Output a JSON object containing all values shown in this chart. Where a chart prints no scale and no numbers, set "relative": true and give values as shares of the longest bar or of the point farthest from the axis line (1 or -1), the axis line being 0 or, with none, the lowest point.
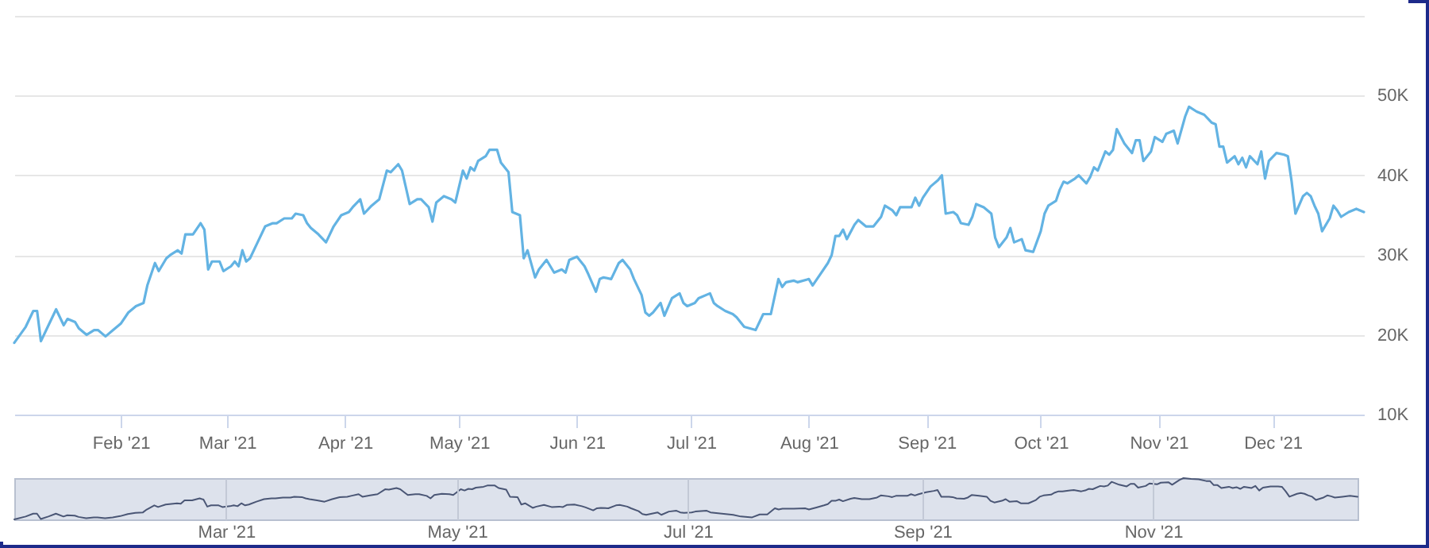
{
  "chart_data": [
    {
      "type": "line",
      "x": [
        "2021-01-04",
        "2021-01-07",
        "2021-01-09",
        "2021-01-10",
        "2021-01-11",
        "2021-01-13",
        "2021-01-15",
        "2021-01-17",
        "2021-01-18",
        "2021-01-20",
        "2021-01-21",
        "2021-01-23",
        "2021-01-25",
        "2021-01-26",
        "2021-01-28",
        "2021-01-30",
        "2021-02-01",
        "2021-02-03",
        "2021-02-05",
        "2021-02-07",
        "2021-02-08",
        "2021-02-10",
        "2021-02-11",
        "2021-02-13",
        "2021-02-14",
        "2021-02-16",
        "2021-02-17",
        "2021-02-18",
        "2021-02-20",
        "2021-02-22",
        "2021-02-23",
        "2021-02-24",
        "2021-02-25",
        "2021-02-27",
        "2021-02-28",
        "2021-03-02",
        "2021-03-03",
        "2021-03-04",
        "2021-03-05",
        "2021-03-06",
        "2021-03-07",
        "2021-03-09",
        "2021-03-11",
        "2021-03-13",
        "2021-03-14",
        "2021-03-16",
        "2021-03-18",
        "2021-03-19",
        "2021-03-21",
        "2021-03-22",
        "2021-03-23",
        "2021-03-25",
        "2021-03-27",
        "2021-03-29",
        "2021-03-31",
        "2021-04-02",
        "2021-04-03",
        "2021-04-05",
        "2021-04-06",
        "2021-04-08",
        "2021-04-10",
        "2021-04-12",
        "2021-04-13",
        "2021-04-15",
        "2021-04-16",
        "2021-04-18",
        "2021-04-20",
        "2021-04-21",
        "2021-04-23",
        "2021-04-24",
        "2021-04-25",
        "2021-04-27",
        "2021-04-29",
        "2021-04-30",
        "2021-05-02",
        "2021-05-03",
        "2021-05-04",
        "2021-05-05",
        "2021-05-06",
        "2021-05-08",
        "2021-05-09",
        "2021-05-11",
        "2021-05-12",
        "2021-05-14",
        "2021-05-15",
        "2021-05-17",
        "2021-05-18",
        "2021-05-19",
        "2021-05-21",
        "2021-05-22",
        "2021-05-24",
        "2021-05-26",
        "2021-05-28",
        "2021-05-29",
        "2021-05-30",
        "2021-06-01",
        "2021-06-03",
        "2021-06-04",
        "2021-06-06",
        "2021-06-07",
        "2021-06-08",
        "2021-06-10",
        "2021-06-12",
        "2021-06-13",
        "2021-06-15",
        "2021-06-16",
        "2021-06-18",
        "2021-06-19",
        "2021-06-20",
        "2021-06-21",
        "2021-06-23",
        "2021-06-24",
        "2021-06-26",
        "2021-06-28",
        "2021-06-29",
        "2021-06-30",
        "2021-07-02",
        "2021-07-03",
        "2021-07-06",
        "2021-07-07",
        "2021-07-08",
        "2021-07-10",
        "2021-07-12",
        "2021-07-13",
        "2021-07-15",
        "2021-07-18",
        "2021-07-20",
        "2021-07-22",
        "2021-07-24",
        "2021-07-25",
        "2021-07-26",
        "2021-07-28",
        "2021-07-29",
        "2021-08-01",
        "2021-08-02",
        "2021-08-04",
        "2021-08-06",
        "2021-08-07",
        "2021-08-08",
        "2021-08-09",
        "2021-08-10",
        "2021-08-11",
        "2021-08-13",
        "2021-08-14",
        "2021-08-16",
        "2021-08-18",
        "2021-08-20",
        "2021-08-21",
        "2021-08-23",
        "2021-08-24",
        "2021-08-25",
        "2021-08-28",
        "2021-08-29",
        "2021-08-30",
        "2021-08-31",
        "2021-09-02",
        "2021-09-04",
        "2021-09-05",
        "2021-09-06",
        "2021-09-08",
        "2021-09-09",
        "2021-09-10",
        "2021-09-12",
        "2021-09-13",
        "2021-09-14",
        "2021-09-16",
        "2021-09-18",
        "2021-09-19",
        "2021-09-20",
        "2021-09-22",
        "2021-09-23",
        "2021-09-24",
        "2021-09-26",
        "2021-09-27",
        "2021-09-29",
        "2021-10-01",
        "2021-10-02",
        "2021-10-03",
        "2021-10-05",
        "2021-10-06",
        "2021-10-07",
        "2021-10-08",
        "2021-10-10",
        "2021-10-11",
        "2021-10-13",
        "2021-10-14",
        "2021-10-15",
        "2021-10-16",
        "2021-10-18",
        "2021-10-19",
        "2021-10-20",
        "2021-10-21",
        "2021-10-23",
        "2021-10-25",
        "2021-10-26",
        "2021-10-27",
        "2021-10-28",
        "2021-10-30",
        "2021-10-31",
        "2021-11-02",
        "2021-11-03",
        "2021-11-05",
        "2021-11-06",
        "2021-11-08",
        "2021-11-09",
        "2021-11-11",
        "2021-11-13",
        "2021-11-15",
        "2021-11-16",
        "2021-11-17",
        "2021-11-18",
        "2021-11-19",
        "2021-11-21",
        "2021-11-22",
        "2021-11-23",
        "2021-11-24",
        "2021-11-25",
        "2021-11-27",
        "2021-11-28",
        "2021-11-29",
        "2021-11-30",
        "2021-12-02",
        "2021-12-04",
        "2021-12-05",
        "2021-12-06",
        "2021-12-07",
        "2021-12-09",
        "2021-12-10",
        "2021-12-11",
        "2021-12-12",
        "2021-12-13",
        "2021-12-14",
        "2021-12-16",
        "2021-12-17",
        "2021-12-18",
        "2021-12-19",
        "2021-12-21",
        "2021-12-23",
        "2021-12-25"
      ],
      "series": [
        {
          "color": "#63b3e3",
          "values": [
            19000,
            21000,
            23000,
            23000,
            19200,
            21200,
            23200,
            21200,
            22000,
            21600,
            20800,
            20000,
            20600,
            20600,
            19800,
            20600,
            21400,
            22800,
            23600,
            24000,
            26200,
            29000,
            28000,
            29600,
            30000,
            30600,
            30200,
            32600,
            32600,
            34000,
            33200,
            28200,
            29200,
            29200,
            28000,
            28600,
            29200,
            28600,
            30600,
            29200,
            29600,
            31600,
            33600,
            34000,
            34000,
            34600,
            34600,
            35200,
            35000,
            34000,
            33400,
            32600,
            31600,
            33600,
            35000,
            35400,
            36000,
            37000,
            35200,
            36200,
            37000,
            40600,
            40400,
            41400,
            40600,
            36400,
            37000,
            37000,
            36000,
            34200,
            36600,
            37400,
            37000,
            36600,
            40600,
            39600,
            41000,
            40600,
            41800,
            42400,
            43200,
            43200,
            41600,
            40400,
            35400,
            35000,
            29600,
            30600,
            27200,
            28200,
            29400,
            27800,
            28200,
            27800,
            29400,
            29800,
            28600,
            27600,
            25400,
            27000,
            27200,
            27000,
            29000,
            29400,
            28200,
            27000,
            25000,
            22800,
            22400,
            22800,
            24000,
            22400,
            24600,
            25200,
            24000,
            23600,
            24000,
            24600,
            25200,
            24000,
            23600,
            23000,
            22600,
            22200,
            21000,
            20600,
            22600,
            22600,
            27000,
            26000,
            26600,
            26800,
            26600,
            27000,
            26200,
            27600,
            29000,
            30000,
            32400,
            32400,
            33200,
            32000,
            33800,
            34400,
            33600,
            33600,
            34800,
            36200,
            35600,
            35000,
            36000,
            36000,
            37200,
            36200,
            37200,
            38600,
            39400,
            40000,
            35200,
            35400,
            35000,
            34000,
            33800,
            34800,
            36400,
            36000,
            35200,
            32200,
            31000,
            32200,
            33400,
            31600,
            32000,
            30600,
            30400,
            33000,
            35200,
            36200,
            36800,
            38200,
            39200,
            39000,
            39600,
            40000,
            39000,
            39800,
            41000,
            40600,
            43000,
            42600,
            43200,
            45800,
            44000,
            42800,
            44400,
            44400,
            41800,
            43000,
            44800,
            44200,
            45200,
            45600,
            44000,
            47400,
            48600,
            48000,
            47600,
            46600,
            46400,
            43600,
            43600,
            41600,
            42400,
            41400,
            42200,
            41000,
            42400,
            41400,
            43000,
            39600,
            41800,
            42800,
            42600,
            42400,
            39200,
            35200,
            37400,
            37800,
            37400,
            36200,
            35200,
            33000,
            34600,
            36200,
            35600,
            34800,
            35400,
            35800,
            35400
          ]
        }
      ],
      "xlim": [
        "2021-01-04",
        "2021-12-25"
      ],
      "xticks": [
        {
          "value": "2021-02-01",
          "label": "Feb '21"
        },
        {
          "value": "2021-03-01",
          "label": "Mar '21"
        },
        {
          "value": "2021-04-01",
          "label": "Apr '21"
        },
        {
          "value": "2021-05-01",
          "label": "May '21"
        },
        {
          "value": "2021-06-01",
          "label": "Jun '21"
        },
        {
          "value": "2021-07-01",
          "label": "Jul '21"
        },
        {
          "value": "2021-08-01",
          "label": "Aug '21"
        },
        {
          "value": "2021-09-01",
          "label": "Sep '21"
        },
        {
          "value": "2021-10-01",
          "label": "Oct '21"
        },
        {
          "value": "2021-11-01",
          "label": "Nov '21"
        },
        {
          "value": "2021-12-01",
          "label": "Dec '21"
        }
      ],
      "ylim": [
        10000,
        60000
      ],
      "yticks": [
        {
          "value": 10000,
          "label": "10K"
        },
        {
          "value": 20000,
          "label": "20K"
        },
        {
          "value": 30000,
          "label": "30K"
        },
        {
          "value": 40000,
          "label": "40K"
        },
        {
          "value": 50000,
          "label": "50K"
        },
        {
          "value": 60000,
          "label": null
        }
      ],
      "grid": "y"
    },
    {
      "type": "line",
      "x": [
        "2021-01-04",
        "2021-01-07",
        "2021-01-09",
        "2021-01-10",
        "2021-01-11",
        "2021-01-13",
        "2021-01-15",
        "2021-01-17",
        "2021-01-18",
        "2021-01-20",
        "2021-01-21",
        "2021-01-23",
        "2021-01-25",
        "2021-01-26",
        "2021-01-28",
        "2021-01-30",
        "2021-02-01",
        "2021-02-03",
        "2021-02-05",
        "2021-02-07",
        "2021-02-08",
        "2021-02-10",
        "2021-02-11",
        "2021-02-13",
        "2021-02-14",
        "2021-02-16",
        "2021-02-17",
        "2021-02-18",
        "2021-02-20",
        "2021-02-22",
        "2021-02-23",
        "2021-02-24",
        "2021-02-25",
        "2021-02-27",
        "2021-02-28",
        "2021-03-02",
        "2021-03-03",
        "2021-03-04",
        "2021-03-05",
        "2021-03-06",
        "2021-03-07",
        "2021-03-09",
        "2021-03-11",
        "2021-03-13",
        "2021-03-14",
        "2021-03-16",
        "2021-03-18",
        "2021-03-19",
        "2021-03-21",
        "2021-03-22",
        "2021-03-23",
        "2021-03-25",
        "2021-03-27",
        "2021-03-29",
        "2021-03-31",
        "2021-04-02",
        "2021-04-03",
        "2021-04-05",
        "2021-04-06",
        "2021-04-08",
        "2021-04-10",
        "2021-04-12",
        "2021-04-13",
        "2021-04-15",
        "2021-04-16",
        "2021-04-18",
        "2021-04-20",
        "2021-04-21",
        "2021-04-23",
        "2021-04-24",
        "2021-04-25",
        "2021-04-27",
        "2021-04-29",
        "2021-04-30",
        "2021-05-02",
        "2021-05-03",
        "2021-05-04",
        "2021-05-05",
        "2021-05-06",
        "2021-05-08",
        "2021-05-09",
        "2021-05-11",
        "2021-05-12",
        "2021-05-14",
        "2021-05-15",
        "2021-05-17",
        "2021-05-18",
        "2021-05-19",
        "2021-05-21",
        "2021-05-22",
        "2021-05-24",
        "2021-05-26",
        "2021-05-28",
        "2021-05-29",
        "2021-05-30",
        "2021-06-01",
        "2021-06-03",
        "2021-06-04",
        "2021-06-06",
        "2021-06-07",
        "2021-06-08",
        "2021-06-10",
        "2021-06-12",
        "2021-06-13",
        "2021-06-15",
        "2021-06-16",
        "2021-06-18",
        "2021-06-19",
        "2021-06-20",
        "2021-06-21",
        "2021-06-23",
        "2021-06-24",
        "2021-06-26",
        "2021-06-28",
        "2021-06-29",
        "2021-06-30",
        "2021-07-02",
        "2021-07-03",
        "2021-07-06",
        "2021-07-07",
        "2021-07-08",
        "2021-07-10",
        "2021-07-12",
        "2021-07-13",
        "2021-07-15",
        "2021-07-18",
        "2021-07-20",
        "2021-07-22",
        "2021-07-24",
        "2021-07-25",
        "2021-07-26",
        "2021-07-28",
        "2021-07-29",
        "2021-08-01",
        "2021-08-02",
        "2021-08-04",
        "2021-08-06",
        "2021-08-07",
        "2021-08-08",
        "2021-08-09",
        "2021-08-10",
        "2021-08-11",
        "2021-08-13",
        "2021-08-14",
        "2021-08-16",
        "2021-08-18",
        "2021-08-20",
        "2021-08-21",
        "2021-08-23",
        "2021-08-24",
        "2021-08-25",
        "2021-08-28",
        "2021-08-29",
        "2021-08-30",
        "2021-08-31",
        "2021-09-02",
        "2021-09-04",
        "2021-09-05",
        "2021-09-06",
        "2021-09-08",
        "2021-09-09",
        "2021-09-10",
        "2021-09-12",
        "2021-09-13",
        "2021-09-14",
        "2021-09-16",
        "2021-09-18",
        "2021-09-19",
        "2021-09-20",
        "2021-09-22",
        "2021-09-23",
        "2021-09-24",
        "2021-09-26",
        "2021-09-27",
        "2021-09-29",
        "2021-10-01",
        "2021-10-02",
        "2021-10-03",
        "2021-10-05",
        "2021-10-06",
        "2021-10-07",
        "2021-10-08",
        "2021-10-10",
        "2021-10-11",
        "2021-10-13",
        "2021-10-14",
        "2021-10-15",
        "2021-10-16",
        "2021-10-18",
        "2021-10-19",
        "2021-10-20",
        "2021-10-21",
        "2021-10-23",
        "2021-10-25",
        "2021-10-26",
        "2021-10-27",
        "2021-10-28",
        "2021-10-30",
        "2021-10-31",
        "2021-11-02",
        "2021-11-03",
        "2021-11-05",
        "2021-11-06",
        "2021-11-08",
        "2021-11-09",
        "2021-11-11",
        "2021-11-13",
        "2021-11-15",
        "2021-11-16",
        "2021-11-17",
        "2021-11-18",
        "2021-11-19",
        "2021-11-21",
        "2021-11-22",
        "2021-11-23",
        "2021-11-24",
        "2021-11-25",
        "2021-11-27",
        "2021-11-28",
        "2021-11-29",
        "2021-11-30",
        "2021-12-02",
        "2021-12-04",
        "2021-12-05",
        "2021-12-06",
        "2021-12-07",
        "2021-12-09",
        "2021-12-10",
        "2021-12-11",
        "2021-12-12",
        "2021-12-13",
        "2021-12-14",
        "2021-12-16",
        "2021-12-17",
        "2021-12-18",
        "2021-12-19",
        "2021-12-21",
        "2021-12-23",
        "2021-12-25"
      ],
      "series": [
        {
          "color": "#4a5675",
          "values": [
            0,
            0.07,
            0.14,
            0.14,
            0.01,
            0.07,
            0.14,
            0.07,
            0.1,
            0.09,
            0.06,
            0.03,
            0.05,
            0.05,
            0.03,
            0.05,
            0.08,
            0.13,
            0.16,
            0.17,
            0.24,
            0.34,
            0.3,
            0.36,
            0.37,
            0.39,
            0.38,
            0.46,
            0.46,
            0.51,
            0.48,
            0.31,
            0.34,
            0.34,
            0.3,
            0.32,
            0.34,
            0.32,
            0.39,
            0.34,
            0.36,
            0.43,
            0.49,
            0.51,
            0.51,
            0.53,
            0.53,
            0.55,
            0.54,
            0.51,
            0.49,
            0.46,
            0.43,
            0.49,
            0.54,
            0.55,
            0.57,
            0.61,
            0.55,
            0.58,
            0.61,
            0.73,
            0.72,
            0.76,
            0.73,
            0.59,
            0.61,
            0.61,
            0.57,
            0.51,
            0.59,
            0.62,
            0.61,
            0.59,
            0.73,
            0.7,
            0.74,
            0.73,
            0.77,
            0.79,
            0.82,
            0.82,
            0.76,
            0.72,
            0.55,
            0.54,
            0.36,
            0.39,
            0.28,
            0.31,
            0.35,
            0.3,
            0.31,
            0.3,
            0.35,
            0.36,
            0.32,
            0.29,
            0.22,
            0.27,
            0.28,
            0.27,
            0.34,
            0.35,
            0.31,
            0.27,
            0.2,
            0.13,
            0.11,
            0.13,
            0.17,
            0.11,
            0.19,
            0.21,
            0.17,
            0.16,
            0.17,
            0.19,
            0.21,
            0.17,
            0.16,
            0.14,
            0.12,
            0.11,
            0.07,
            0.05,
            0.12,
            0.12,
            0.27,
            0.24,
            0.26,
            0.26,
            0.26,
            0.27,
            0.24,
            0.29,
            0.34,
            0.37,
            0.45,
            0.45,
            0.48,
            0.44,
            0.5,
            0.52,
            0.49,
            0.49,
            0.53,
            0.58,
            0.56,
            0.54,
            0.57,
            0.57,
            0.61,
            0.58,
            0.61,
            0.66,
            0.69,
            0.71,
            0.55,
            0.55,
            0.54,
            0.51,
            0.5,
            0.53,
            0.59,
            0.57,
            0.55,
            0.45,
            0.41,
            0.45,
            0.49,
            0.43,
            0.44,
            0.39,
            0.39,
            0.47,
            0.55,
            0.58,
            0.6,
            0.65,
            0.68,
            0.68,
            0.7,
            0.71,
            0.68,
            0.7,
            0.74,
            0.73,
            0.81,
            0.8,
            0.82,
            0.91,
            0.84,
            0.8,
            0.86,
            0.86,
            0.77,
            0.81,
            0.87,
            0.85,
            0.89,
            0.9,
            0.84,
            0.96,
            1,
            0.98,
            0.97,
            0.93,
            0.93,
            0.83,
            0.83,
            0.76,
            0.79,
            0.76,
            0.78,
            0.74,
            0.79,
            0.76,
            0.81,
            0.7,
            0.77,
            0.8,
            0.8,
            0.79,
            0.68,
            0.55,
            0.62,
            0.64,
            0.62,
            0.58,
            0.55,
            0.47,
            0.53,
            0.58,
            0.56,
            0.53,
            0.55,
            0.57,
            0.55
          ]
        }
      ],
      "xlim": [
        "2021-01-04",
        "2021-12-25"
      ],
      "xticks": [
        {
          "value": "2021-03-01",
          "label": "Mar '21"
        },
        {
          "value": "2021-05-01",
          "label": "May '21"
        },
        {
          "value": "2021-07-01",
          "label": "Jul '21"
        },
        {
          "value": "2021-09-01",
          "label": "Sep '21"
        },
        {
          "value": "2021-11-01",
          "label": "Nov '21"
        }
      ],
      "relative": true,
      "grid": "x",
      "tick_labels": "x"
    }
  ]
}
